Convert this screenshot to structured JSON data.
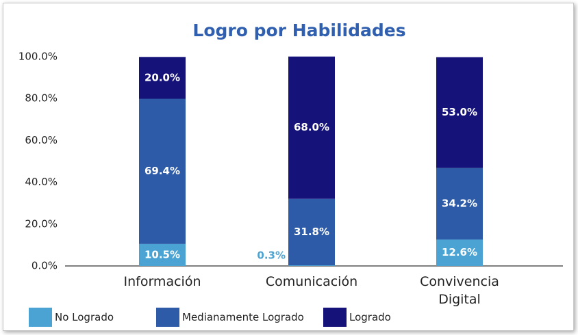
{
  "chart_data": {
    "type": "stacked_bar",
    "title": "Logro por Habilidades",
    "categories": [
      "Información",
      "Comunicación",
      "Convivencia Digital"
    ],
    "series": [
      {
        "name": "No Logrado",
        "color": "#4ba3d3",
        "values": [
          10.5,
          0.3,
          12.6
        ],
        "value_labels": [
          "10.5%",
          "0.3%",
          "12.6%"
        ]
      },
      {
        "name": "Medianamente Logrado",
        "color": "#2e5ba8",
        "values": [
          69.4,
          31.8,
          34.2
        ],
        "value_labels": [
          "69.4%",
          "31.8%",
          "34.2%"
        ]
      },
      {
        "name": "Logrado",
        "color": "#15127a",
        "values": [
          20.0,
          68.0,
          53.0
        ],
        "value_labels": [
          "20.0%",
          "68.0%",
          "53.0%"
        ]
      }
    ],
    "ylim": [
      0,
      100
    ],
    "yticks": [
      {
        "value": 0,
        "label": "0.0%"
      },
      {
        "value": 20,
        "label": "20.0%"
      },
      {
        "value": 40,
        "label": "40.0%"
      },
      {
        "value": 60,
        "label": "60.0%"
      },
      {
        "value": 80,
        "label": "80.0%"
      },
      {
        "value": 100,
        "label": "100.0%"
      }
    ],
    "grid": false
  }
}
